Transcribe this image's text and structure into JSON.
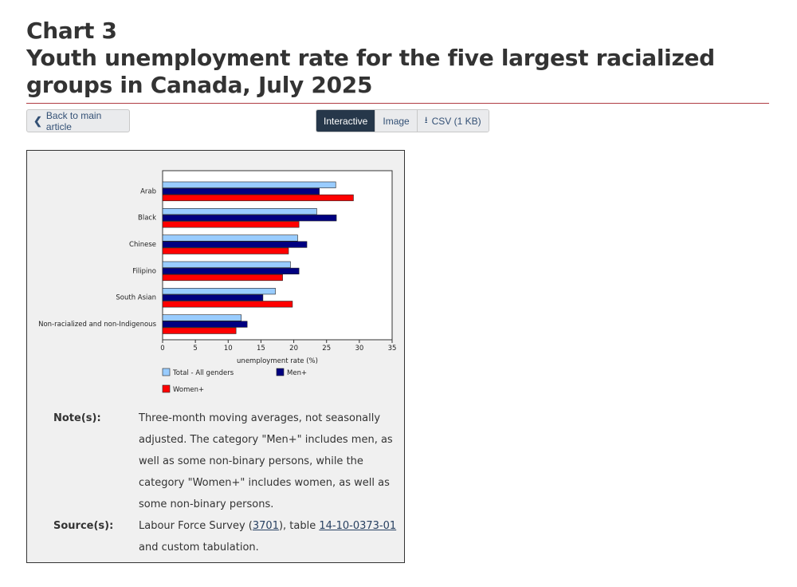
{
  "header": {
    "chart_number": "Chart 3",
    "title": "Youth unemployment rate for the five largest racialized groups in Canada, July 2025"
  },
  "toolbar": {
    "back_label": "Back to main article",
    "interactive_label": "Interactive",
    "image_label": "Image",
    "csv_label": "CSV (1 KB)"
  },
  "colors": {
    "total": "#99ccff",
    "men": "#000080",
    "women": "#ff0000",
    "title_rule": "#af3c43"
  },
  "chart_data": {
    "type": "bar",
    "orientation": "horizontal",
    "categories": [
      "Arab",
      "Black",
      "Chinese",
      "Filipino",
      "South Asian",
      "Non-racialized and non-Indigenous"
    ],
    "series": [
      {
        "name": "Total - All genders",
        "values": [
          26.4,
          23.5,
          20.6,
          19.5,
          17.2,
          12.0
        ]
      },
      {
        "name": "Men+",
        "values": [
          23.9,
          26.5,
          22.0,
          20.8,
          15.3,
          12.9
        ]
      },
      {
        "name": "Women+",
        "values": [
          29.1,
          20.8,
          19.2,
          18.3,
          19.8,
          11.2
        ]
      }
    ],
    "xlabel": "unemployment rate (%)",
    "xlim": [
      0,
      35
    ],
    "xticks": [
      "0",
      "5",
      "10",
      "15",
      "20",
      "25",
      "30",
      "35"
    ],
    "legend_position": "bottom",
    "grid": false
  },
  "notes": {
    "note_label": "Note(s):",
    "note_text": "Three-month moving averages, not seasonally adjusted. The category \"Men+\" includes men, as well as some non-binary persons, while the category \"Women+\" includes women, as well as some non-binary persons.",
    "source_label": "Source(s):",
    "source_prefix": "Labour Force Survey (",
    "source_link1": "3701",
    "source_middle": "), table ",
    "source_link2": "14-10-0373-01",
    "source_suffix": " and custom tabulation."
  }
}
